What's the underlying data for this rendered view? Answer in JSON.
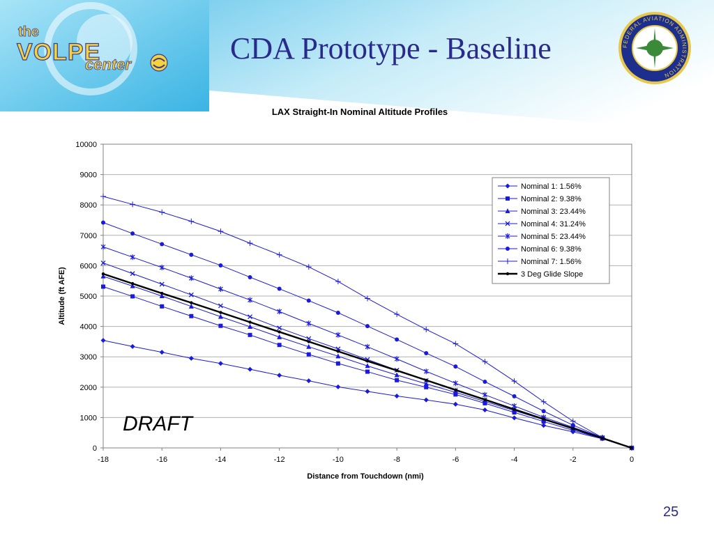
{
  "slide": {
    "title": "CDA Prototype - Baseline",
    "page_number": "25",
    "logo_text": "the VOLPE center",
    "seal_text": "FEDERAL AVIATION ADMINISTRATION",
    "draft_label": "DRAFT"
  },
  "colors": {
    "title": "#2a2a8c",
    "series": "#1a1adc",
    "glide": "#000000",
    "header_light": "#c6ecf8",
    "header_mid": "#7ccfee"
  },
  "chart_data": {
    "type": "line",
    "title": "LAX Straight-In Nominal Altitude Profiles",
    "xlabel": "Distance from Touchdown (nmi)",
    "ylabel": "Altitude (ft AFE)",
    "xlim": [
      -18,
      0
    ],
    "ylim": [
      0,
      10000
    ],
    "xticks": [
      "-18",
      "-16",
      "-14",
      "-12",
      "-10",
      "-8",
      "-6",
      "-4",
      "-2",
      "0"
    ],
    "yticks": [
      "0",
      "1000",
      "2000",
      "3000",
      "4000",
      "5000",
      "6000",
      "7000",
      "8000",
      "9000",
      "10000"
    ],
    "grid": true,
    "legend_position": "top-right",
    "x": [
      -18,
      -17,
      -16,
      -15,
      -14,
      -13,
      -12,
      -11,
      -10,
      -9,
      -8,
      -7,
      -6,
      -5,
      -4,
      -3,
      -2,
      -1,
      0
    ],
    "series": [
      {
        "name": "Nominal 1: 1.56%",
        "marker": "diamond",
        "values": [
          3540,
          3340,
          3150,
          2950,
          2780,
          2590,
          2390,
          2210,
          2010,
          1860,
          1710,
          1580,
          1440,
          1250,
          990,
          740,
          530,
          300,
          0
        ]
      },
      {
        "name": "Nominal 2: 9.38%",
        "marker": "square",
        "values": [
          5310,
          4990,
          4660,
          4340,
          4020,
          3720,
          3390,
          3080,
          2780,
          2510,
          2230,
          2000,
          1760,
          1470,
          1170,
          870,
          580,
          310,
          0
        ]
      },
      {
        "name": "Nominal 3: 23.44%",
        "marker": "triangle",
        "values": [
          5650,
          5330,
          5000,
          4660,
          4320,
          3990,
          3650,
          3330,
          3020,
          2700,
          2400,
          2110,
          1830,
          1530,
          1230,
          930,
          630,
          320,
          0
        ]
      },
      {
        "name": "Nominal 4: 31.24%",
        "marker": "x",
        "values": [
          6090,
          5740,
          5390,
          5040,
          4680,
          4320,
          3950,
          3600,
          3260,
          2910,
          2560,
          2220,
          1890,
          1580,
          1270,
          960,
          650,
          330,
          0
        ]
      },
      {
        "name": "Nominal 5: 23.44%",
        "marker": "star",
        "values": [
          6620,
          6280,
          5940,
          5590,
          5230,
          4870,
          4490,
          4100,
          3720,
          3330,
          2930,
          2520,
          2130,
          1750,
          1380,
          1010,
          680,
          340,
          0
        ]
      },
      {
        "name": "Nominal 6: 9.38%",
        "marker": "circle",
        "values": [
          7420,
          7060,
          6710,
          6360,
          6010,
          5620,
          5240,
          4850,
          4450,
          4010,
          3570,
          3120,
          2680,
          2180,
          1700,
          1210,
          750,
          340,
          0
        ]
      },
      {
        "name": "Nominal 7: 1.56%",
        "marker": "plus",
        "values": [
          8280,
          8020,
          7760,
          7460,
          7130,
          6740,
          6360,
          5960,
          5480,
          4920,
          4400,
          3900,
          3430,
          2840,
          2200,
          1520,
          880,
          340,
          0
        ]
      },
      {
        "name": "3 Deg Glide Slope",
        "marker": "dot",
        "values": [
          5730,
          5410,
          5090,
          4780,
          4460,
          4140,
          3820,
          3500,
          3180,
          2860,
          2550,
          2230,
          1910,
          1590,
          1270,
          950,
          640,
          320,
          0
        ]
      }
    ]
  }
}
